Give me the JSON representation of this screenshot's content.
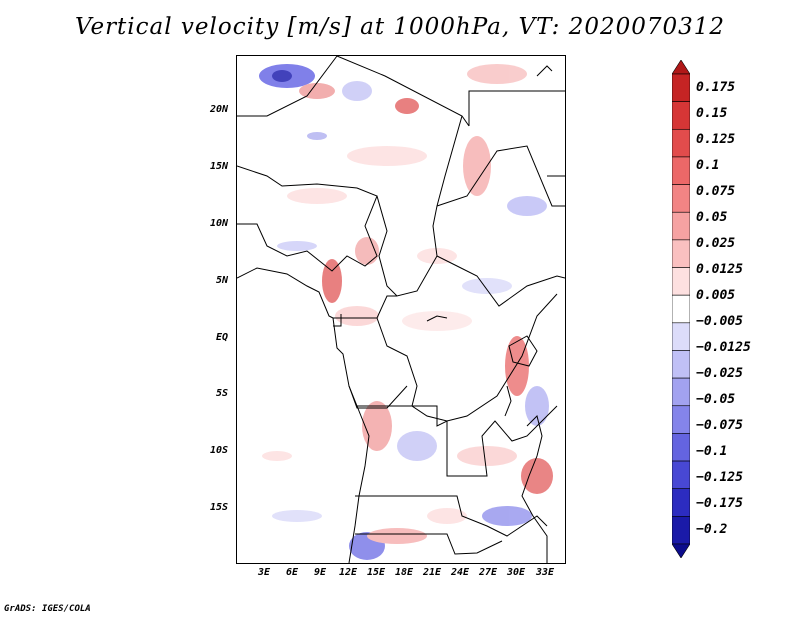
{
  "title": "Vertical velocity [m/s] at 1000hPa, VT: 2020070312",
  "credit": "GrADS: IGES/COLA",
  "map": {
    "lat_labels": [
      "20N",
      "15N",
      "10N",
      "5N",
      "EQ",
      "5S",
      "10S",
      "15S"
    ],
    "lon_labels": [
      "3E",
      "6E",
      "9E",
      "12E",
      "15E",
      "18E",
      "21E",
      "24E",
      "27E",
      "30E",
      "33E"
    ]
  },
  "colorbar": {
    "labels": [
      "0.175",
      "0.15",
      "0.125",
      "0.1",
      "0.075",
      "0.05",
      "0.025",
      "0.0125",
      "0.005",
      "−0.005",
      "−0.0125",
      "−0.025",
      "−0.05",
      "−0.075",
      "−0.1",
      "−0.125",
      "−0.175",
      "−0.2"
    ],
    "colors": [
      "#b01818",
      "#c52424",
      "#d63636",
      "#e24c4c",
      "#ec6868",
      "#f28484",
      "#f6a2a2",
      "#fac0c0",
      "#fde0e0",
      "#ffffff",
      "#dcdcfa",
      "#c0c0f6",
      "#a2a2f0",
      "#8484ea",
      "#6464e0",
      "#4848d4",
      "#2c2cc0",
      "#1a1aa8",
      "#0c0c8c"
    ]
  }
}
